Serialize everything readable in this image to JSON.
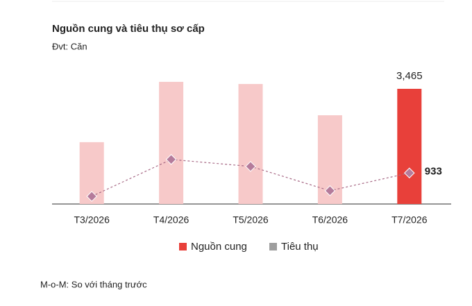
{
  "chart_data": {
    "type": "bar_line",
    "title": "Nguồn cung và tiêu thụ sơ cấp",
    "subtitle": "Đvt: Căn",
    "note": "M-o-M: So với tháng trước",
    "categories": [
      "T3/2026",
      "T4/2026",
      "T5/2026",
      "T6/2026",
      "T7/2026"
    ],
    "series": [
      {
        "name": "Nguồn cung",
        "color": "#e8403a",
        "bar_colors": [
          "#f7c9c9",
          "#f7c9c9",
          "#f7c9c9",
          "#f7c9c9",
          "#e8403a"
        ],
        "values": [
          1860,
          3675,
          3610,
          2670,
          3465
        ],
        "value_labels": [
          null,
          null,
          null,
          null,
          "3,465"
        ]
      },
      {
        "name": "Tiêu thụ",
        "color": "#9e9e9e",
        "marker_color": "#b57b9b",
        "values": [
          230,
          1340,
          1130,
          400,
          933
        ],
        "value_labels": [
          null,
          null,
          null,
          null,
          "933"
        ]
      }
    ]
  }
}
